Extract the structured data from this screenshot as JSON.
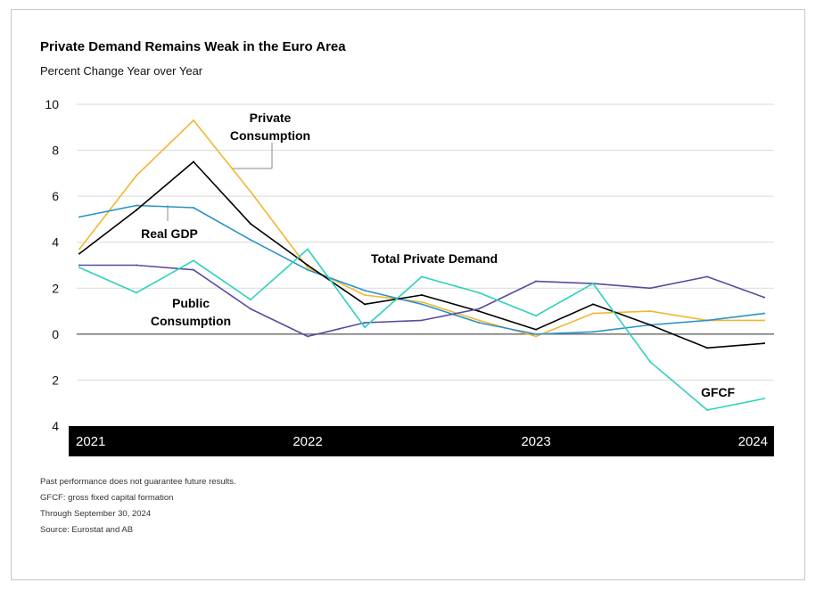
{
  "title": "Private Demand Remains Weak in the Euro Area",
  "subtitle": "Percent Change Year over Year",
  "footnotes": [
    "Past performance does not guarantee future results.",
    "GFCF: gross fixed capital formation",
    "Through September 30, 2024",
    "Source: Eurostat and AB"
  ],
  "chart_data": {
    "type": "line",
    "title": "Private Demand Remains Weak in the Euro Area",
    "subtitle": "Percent Change Year over Year",
    "ylim": [
      -4,
      10
    ],
    "y_ticks": [
      10,
      8,
      6,
      4,
      2,
      0,
      -2,
      -4
    ],
    "y_tick_labels": [
      "10",
      "8",
      "6",
      "4",
      "2",
      "0",
      "2",
      "4"
    ],
    "x_ticks": [
      "2021",
      "2022",
      "2023",
      "2024"
    ],
    "x": [
      "2021 Q1",
      "2021 Q2",
      "2021 Q3",
      "2021 Q4",
      "2022 Q1",
      "2022 Q2",
      "2022 Q3",
      "2022 Q4",
      "2023 Q1",
      "2023 Q2",
      "2023 Q3",
      "2023 Q4",
      "2024 Q1"
    ],
    "grid": true,
    "series": [
      {
        "name": "Private Consumption",
        "color": "#f2b632",
        "values": [
          3.7,
          6.9,
          9.3,
          6.2,
          2.9,
          1.7,
          1.4,
          0.6,
          -0.1,
          0.9,
          1.0,
          0.6,
          0.6
        ]
      },
      {
        "name": "Real GDP",
        "color": "#2a93c9",
        "values": [
          5.1,
          5.6,
          5.5,
          4.1,
          2.8,
          1.9,
          1.3,
          0.5,
          0.0,
          0.1,
          0.4,
          0.6,
          0.9
        ]
      },
      {
        "name": "Total Private Demand",
        "color": "#000000",
        "values": [
          3.5,
          5.4,
          7.5,
          4.8,
          3.0,
          1.3,
          1.7,
          1.0,
          0.2,
          1.3,
          0.4,
          -0.6,
          -0.4
        ]
      },
      {
        "name": "Public Consumption",
        "color": "#5b4a9e",
        "values": [
          3.0,
          3.0,
          2.8,
          1.1,
          -0.1,
          0.5,
          0.6,
          1.1,
          2.3,
          2.2,
          2.0,
          2.5,
          1.6
        ]
      },
      {
        "name": "GFCF",
        "color": "#2ed1bd",
        "values": [
          2.9,
          1.8,
          3.2,
          1.5,
          3.7,
          0.3,
          2.5,
          1.8,
          0.8,
          2.2,
          -1.2,
          -3.3,
          -2.8
        ]
      }
    ]
  }
}
